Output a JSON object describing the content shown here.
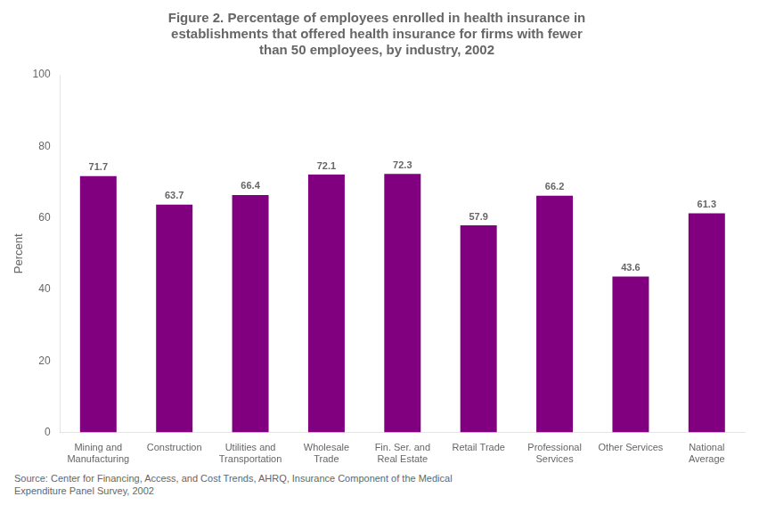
{
  "chart_data": {
    "type": "bar",
    "title": "Figure 2. Percentage of employees enrolled in health insurance in\nestablishments that offered health insurance for firms with fewer\nthan 50 employees, by industry, 2002",
    "categories": [
      "Mining and\nManufacturing",
      "Construction",
      "Utilities and\nTransportation",
      "Wholesale\nTrade",
      "Fin. Ser. and\nReal Estate",
      "Retail Trade",
      "Professional\nServices",
      "Other Services",
      "National\nAverage"
    ],
    "values": [
      71.7,
      63.7,
      66.4,
      72.1,
      72.3,
      57.9,
      66.2,
      43.6,
      61.3
    ],
    "color": "#800080",
    "ylabel": "Percent",
    "ylim": [
      0,
      100
    ],
    "yticks": [
      0,
      20,
      40,
      60,
      80,
      100
    ],
    "grid": false,
    "data_labels": true,
    "annotations": [
      "Source: Center for Financing, Access, and Cost Trends, AHRQ, Insurance Component of the Medical\nExpenditure Panel Survey, 2002"
    ]
  }
}
